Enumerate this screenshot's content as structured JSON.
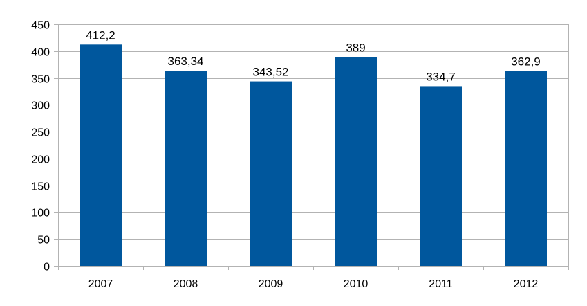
{
  "chart_data": {
    "type": "bar",
    "title": "",
    "xlabel": "",
    "ylabel": "",
    "categories": [
      "2007",
      "2008",
      "2009",
      "2010",
      "2011",
      "2012"
    ],
    "values": [
      412.2,
      363.34,
      343.52,
      389,
      334.7,
      362.9
    ],
    "data_labels": [
      "412,2",
      "363,34",
      "343,52",
      "389",
      "334,7",
      "362,9"
    ],
    "ylim": [
      0,
      450
    ],
    "yticks": [
      0,
      50,
      100,
      150,
      200,
      250,
      300,
      350,
      400,
      450
    ],
    "grid": true,
    "legend": "none",
    "bar_color": "#00579d"
  }
}
